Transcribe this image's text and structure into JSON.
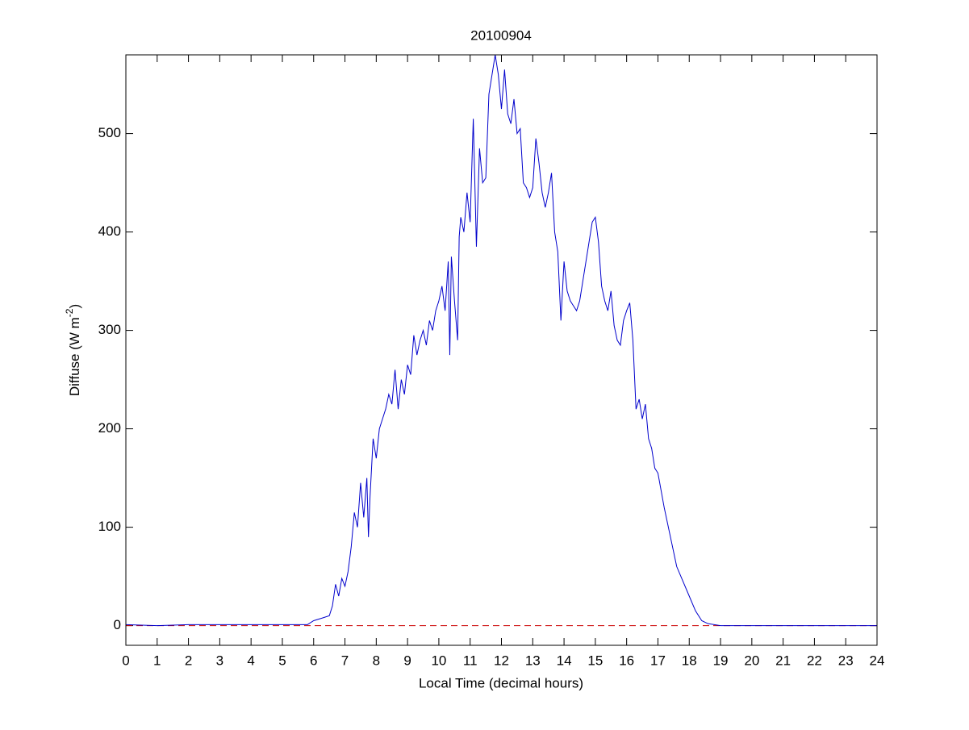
{
  "chart_data": {
    "type": "line",
    "title": "20100904",
    "xlabel": "Local Time (decimal hours)",
    "ylabel": {
      "text": "Diffuse (W m",
      "sup": "-2",
      "tail": ")"
    },
    "xlim": [
      0,
      24
    ],
    "ylim": [
      -20,
      580
    ],
    "xticks": [
      0,
      1,
      2,
      3,
      4,
      5,
      6,
      7,
      8,
      9,
      10,
      11,
      12,
      13,
      14,
      15,
      16,
      17,
      18,
      19,
      20,
      21,
      22,
      23,
      24
    ],
    "yticks": [
      0,
      100,
      200,
      300,
      400,
      500
    ],
    "reference_line": {
      "value": 0,
      "color": "#cc0000",
      "dashed": true
    },
    "series": [
      {
        "color": "#0000cc",
        "x": [
          0,
          1,
          2,
          3,
          4,
          5,
          5.8,
          6,
          6.3,
          6.5,
          6.6,
          6.7,
          6.8,
          6.9,
          7.0,
          7.1,
          7.2,
          7.3,
          7.4,
          7.5,
          7.6,
          7.7,
          7.75,
          7.8,
          7.9,
          8.0,
          8.1,
          8.2,
          8.3,
          8.4,
          8.5,
          8.6,
          8.7,
          8.8,
          8.9,
          9.0,
          9.1,
          9.2,
          9.3,
          9.4,
          9.5,
          9.6,
          9.7,
          9.8,
          9.9,
          10.0,
          10.1,
          10.2,
          10.3,
          10.35,
          10.4,
          10.5,
          10.6,
          10.65,
          10.7,
          10.8,
          10.9,
          11.0,
          11.1,
          11.2,
          11.3,
          11.4,
          11.5,
          11.6,
          11.7,
          11.8,
          11.9,
          12.0,
          12.1,
          12.2,
          12.3,
          12.4,
          12.5,
          12.6,
          12.7,
          12.8,
          12.9,
          13.0,
          13.1,
          13.2,
          13.3,
          13.4,
          13.5,
          13.6,
          13.7,
          13.8,
          13.9,
          14.0,
          14.1,
          14.2,
          14.3,
          14.4,
          14.5,
          14.6,
          14.7,
          14.8,
          14.9,
          15.0,
          15.1,
          15.2,
          15.3,
          15.4,
          15.5,
          15.6,
          15.7,
          15.8,
          15.9,
          16.0,
          16.1,
          16.2,
          16.3,
          16.4,
          16.5,
          16.6,
          16.7,
          16.8,
          16.9,
          17.0,
          17.2,
          17.4,
          17.6,
          17.8,
          18.0,
          18.2,
          18.4,
          18.6,
          19,
          20,
          21,
          22,
          23,
          24
        ],
        "values": [
          1,
          0,
          1,
          1,
          1,
          1,
          1,
          5,
          8,
          10,
          20,
          42,
          30,
          48,
          40,
          55,
          80,
          115,
          100,
          145,
          110,
          150,
          90,
          130,
          190,
          170,
          200,
          210,
          220,
          235,
          225,
          260,
          220,
          250,
          235,
          265,
          255,
          295,
          275,
          290,
          300,
          285,
          310,
          300,
          320,
          330,
          345,
          320,
          370,
          275,
          375,
          330,
          290,
          395,
          415,
          400,
          440,
          410,
          515,
          385,
          485,
          450,
          455,
          540,
          560,
          580,
          560,
          525,
          565,
          520,
          510,
          535,
          500,
          505,
          450,
          445,
          435,
          445,
          495,
          470,
          440,
          425,
          440,
          460,
          400,
          380,
          310,
          370,
          340,
          330,
          325,
          320,
          330,
          350,
          370,
          390,
          410,
          415,
          390,
          345,
          330,
          320,
          340,
          305,
          290,
          285,
          310,
          320,
          328,
          290,
          220,
          230,
          210,
          225,
          190,
          180,
          160,
          155,
          120,
          90,
          60,
          45,
          30,
          15,
          5,
          2,
          0,
          0,
          0,
          0,
          0,
          0
        ]
      }
    ]
  }
}
